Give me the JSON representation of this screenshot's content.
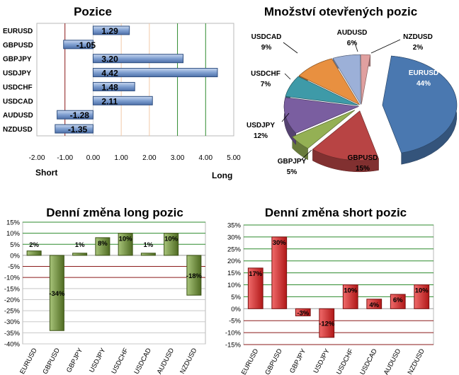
{
  "colors": {
    "bar_blue": "#7f9fd0",
    "green_grid": "#2e8b2e",
    "dark_red_grid": "#8b1a1a",
    "long_green_light": "#a8c47a",
    "long_green_dark": "#4f6b22",
    "short_red_light": "#f06a6a",
    "short_red_dark": "#b01818"
  },
  "chart_data": [
    {
      "type": "bar",
      "orientation": "horizontal",
      "title": "Pozice",
      "categories": [
        "EURUSD",
        "GBPUSD",
        "GBPJPY",
        "USDJPY",
        "USDCHF",
        "USDCAD",
        "AUDUSD",
        "NZDUSD"
      ],
      "values": [
        1.29,
        -1.05,
        3.2,
        4.42,
        1.48,
        2.11,
        -1.28,
        -1.35
      ],
      "value_labels": [
        "1.29",
        "-1.05",
        "3.20",
        "4.42",
        "1.48",
        "2.11",
        "-1.28",
        "-1.35"
      ],
      "xlim": [
        -2,
        5
      ],
      "xticks": [
        "-2.00",
        "-1.00",
        "0.00",
        "1.00",
        "2.00",
        "3.00",
        "4.00",
        "5.00"
      ],
      "left_label": "Short",
      "right_label": "Long"
    },
    {
      "type": "pie",
      "title": "Množství otevřených pozic",
      "slices": [
        {
          "label": "EURUSD",
          "value": 44,
          "value_label": "44%",
          "color": "#4a78b0"
        },
        {
          "label": "GBPUSD",
          "value": 15,
          "value_label": "15%",
          "color": "#b84444"
        },
        {
          "label": "GBPJPY",
          "value": 5,
          "value_label": "5%",
          "color": "#94b054"
        },
        {
          "label": "USDJPY",
          "value": 12,
          "value_label": "12%",
          "color": "#7a5ea0"
        },
        {
          "label": "USDCHF",
          "value": 7,
          "value_label": "7%",
          "color": "#3e9aa8"
        },
        {
          "label": "USDCAD",
          "value": 9,
          "value_label": "9%",
          "color": "#e89040"
        },
        {
          "label": "AUDUSD",
          "value": 6,
          "value_label": "6%",
          "color": "#9cb0d8"
        },
        {
          "label": "NZDUSD",
          "value": 2,
          "value_label": "2%",
          "color": "#e0a0a0"
        }
      ]
    },
    {
      "type": "bar",
      "title": "Denní změna long pozic",
      "categories": [
        "EURUSD",
        "GBPUSD",
        "GBPJPY",
        "USDJPY",
        "USDCHF",
        "USDCAD",
        "AUDUSD",
        "NZDUSD"
      ],
      "values": [
        2,
        -34,
        1,
        8,
        10,
        1,
        10,
        -18
      ],
      "value_labels": [
        "2%",
        "-34%",
        "1%",
        "8%",
        "10%",
        "1%",
        "10%",
        "-18%"
      ],
      "ylim": [
        -40,
        15
      ],
      "yticks": [
        "15%",
        "10%",
        "5%",
        "0%",
        "-5%",
        "-10%",
        "-15%",
        "-20%",
        "-25%",
        "-30%",
        "-35%",
        "-40%"
      ]
    },
    {
      "type": "bar",
      "title": "Denní změna short pozic",
      "categories": [
        "EURUSD",
        "GBPUSD",
        "GBPJPY",
        "USDJPY",
        "USDCHF",
        "USDCAD",
        "AUDUSD",
        "NZDUSD"
      ],
      "values": [
        17,
        30,
        -3,
        -12,
        10,
        4,
        6,
        10
      ],
      "value_labels": [
        "17%",
        "30%",
        "-3%",
        "-12%",
        "10%",
        "4%",
        "6%",
        "10%"
      ],
      "ylim": [
        -15,
        35
      ],
      "yticks": [
        "35%",
        "30%",
        "25%",
        "20%",
        "15%",
        "10%",
        "5%",
        "0%",
        "-5%",
        "-10%",
        "-15%"
      ]
    }
  ]
}
